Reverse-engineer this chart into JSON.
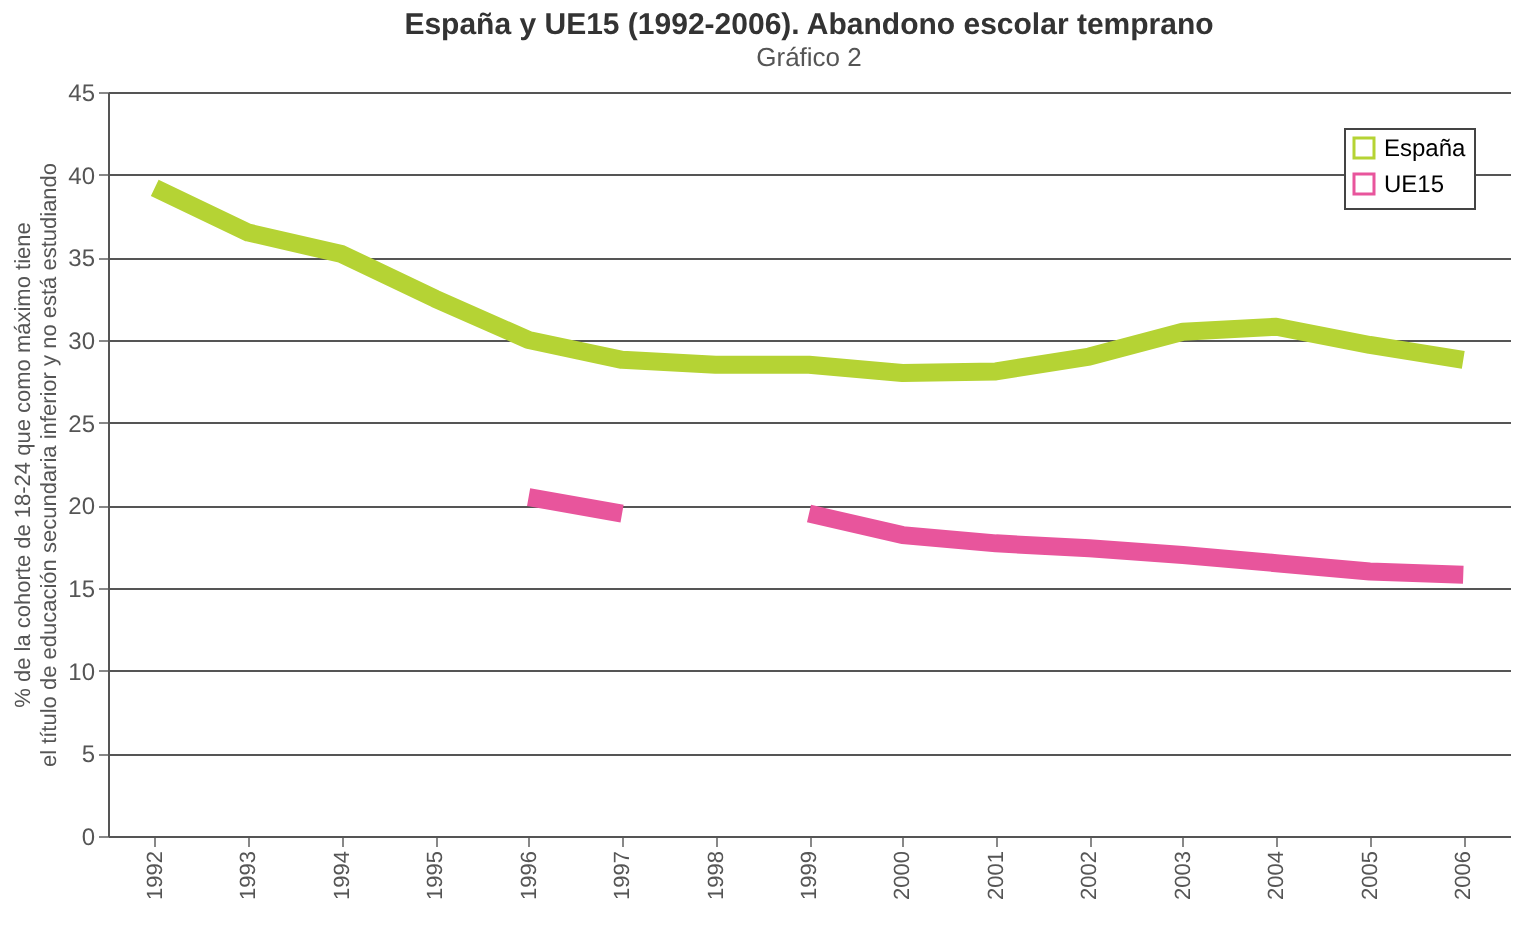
{
  "chart_data": {
    "type": "line",
    "title": "España y UE15 (1992-2006). Abandono escolar temprano",
    "ylabel": "% de la cohorte de 18-24 que como máximo tiene el título de educación secundaria inferior y no está estudiando",
    "annotations": [
      "Gráfico 2"
    ],
    "categories": [
      "1992",
      "1993",
      "1994",
      "1995",
      "1996",
      "1997",
      "1998",
      "1999",
      "2000",
      "2001",
      "2002",
      "2003",
      "2004",
      "2005",
      "2006"
    ],
    "series": [
      {
        "name": "España",
        "color": "#b5d334",
        "values": [
          39.2,
          36.5,
          35.2,
          32.5,
          30.0,
          28.8,
          28.5,
          28.5,
          28.0,
          28.1,
          29.0,
          30.5,
          30.8,
          29.7,
          28.8
        ]
      },
      {
        "name": "UE15",
        "color": "#e8559c",
        "values": [
          null,
          null,
          null,
          null,
          20.5,
          19.5,
          null,
          19.5,
          18.2,
          17.7,
          17.4,
          17.0,
          16.5,
          16.0,
          15.8
        ]
      }
    ],
    "ylim": [
      0,
      45
    ],
    "yticks": [
      0,
      5,
      10,
      15,
      20,
      25,
      30,
      35,
      40,
      45
    ],
    "grid": "y",
    "legend": "top right",
    "marker": "none",
    "line_style": "solid"
  }
}
